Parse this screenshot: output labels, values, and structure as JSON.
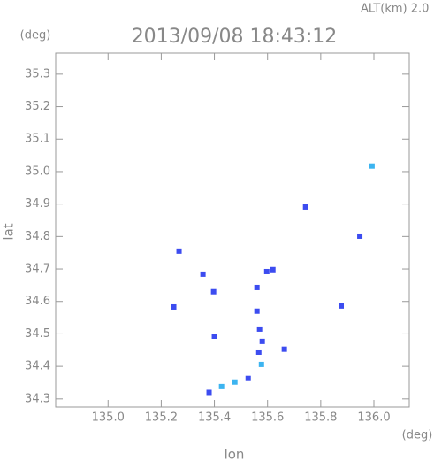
{
  "chart_data": {
    "type": "scatter",
    "title": "2013/09/08 18:43:12",
    "annotation": "ALT(km) 2.0",
    "x_unit": "(deg)",
    "y_unit": "(deg)",
    "xlabel": "lon",
    "ylabel": "lat",
    "xlim": [
      134.803,
      136.133
    ],
    "ylim": [
      34.275,
      35.365
    ],
    "xticks": [
      {
        "value": 135,
        "label": "135.0"
      },
      135.2,
      135.4,
      135.6,
      135.8,
      {
        "value": 136,
        "label": "136.0"
      }
    ],
    "yticks": [
      34.3,
      34.4,
      34.5,
      34.6,
      34.7,
      34.8,
      34.9,
      {
        "value": 35,
        "label": "35.0"
      },
      35.1,
      35.2,
      35.3
    ],
    "series": [
      {
        "color": "#3c4cf0",
        "x": [
          135.267,
          135.357,
          135.397,
          135.247,
          135.4,
          135.38,
          135.597,
          135.62,
          135.56,
          135.56,
          135.57,
          135.58,
          135.567,
          135.663,
          135.743,
          135.947,
          135.877,
          135.527
        ],
        "values": [
          34.755,
          34.684,
          34.63,
          34.583,
          34.493,
          34.32,
          34.692,
          34.698,
          34.643,
          34.57,
          34.515,
          34.477,
          34.444,
          34.453,
          34.891,
          34.801,
          34.586,
          34.363
        ]
      },
      {
        "color": "#3cb4f0",
        "x": [
          135.477,
          135.427,
          135.577,
          135.993
        ],
        "values": [
          34.352,
          34.338,
          34.406,
          35.017
        ]
      }
    ]
  }
}
